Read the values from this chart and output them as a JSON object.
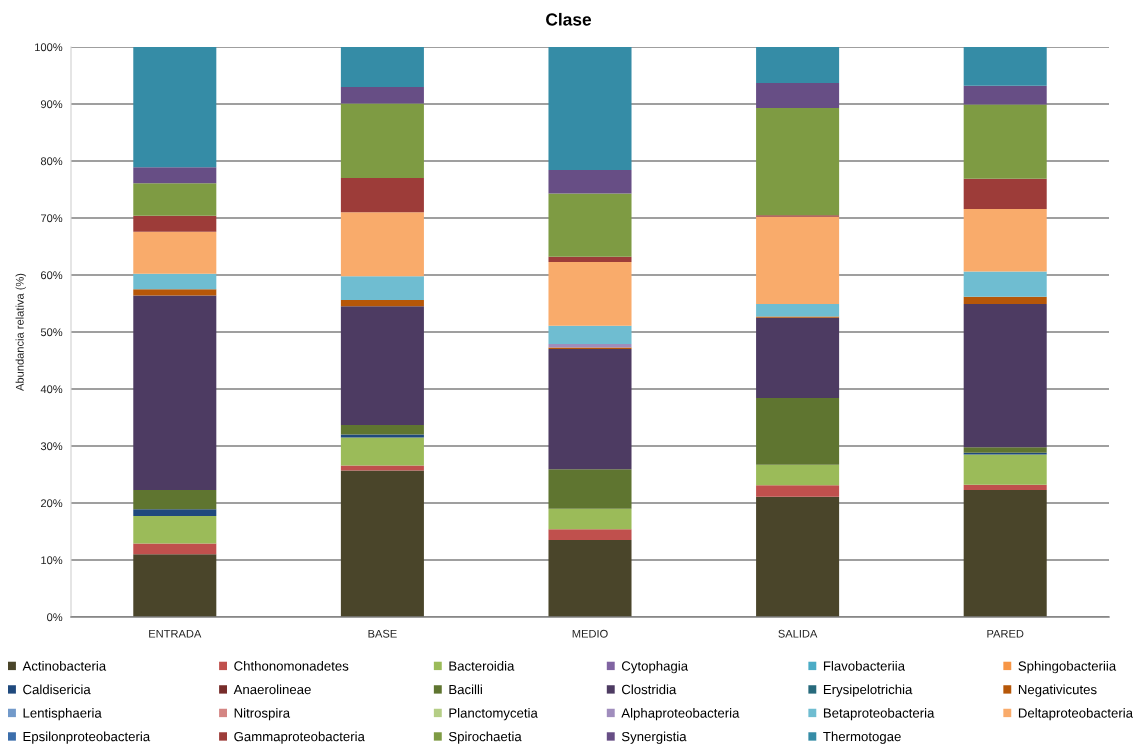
{
  "chart_data": {
    "type": "bar",
    "title": "Clase",
    "ylabel": "Abundancia relativa (%)",
    "categories": [
      "ENTRADA",
      "BASE",
      "MEDIO",
      "SALIDA",
      "PARED"
    ],
    "stacked": true,
    "ylim": [
      0,
      100
    ],
    "yticks": [
      {
        "value": 0,
        "label": "0%"
      },
      {
        "value": 10,
        "label": "10%"
      },
      {
        "value": 20,
        "label": "20%"
      },
      {
        "value": 30,
        "label": "30%"
      },
      {
        "value": 40,
        "label": "40%"
      },
      {
        "value": 50,
        "label": "50%"
      },
      {
        "value": 60,
        "label": "60%"
      },
      {
        "value": 70,
        "label": "70%"
      },
      {
        "value": 80,
        "label": "80%"
      },
      {
        "value": 90,
        "label": "90%"
      },
      {
        "value": 100,
        "label": "100%"
      }
    ],
    "grid": "y",
    "legend": "bottom",
    "series": [
      {
        "name": "Actinobacteria",
        "color": "#4a452a",
        "values": [
          11.0,
          25.7,
          13.5,
          21.1,
          22.3
        ]
      },
      {
        "name": "Chthonomonadetes",
        "color": "#c0504d",
        "values": [
          1.9,
          0.9,
          1.9,
          2.0,
          0.9
        ]
      },
      {
        "name": "Bacteroidia",
        "color": "#9bbb59",
        "values": [
          4.8,
          4.9,
          3.6,
          3.6,
          5.3
        ]
      },
      {
        "name": "Cytophagia",
        "color": "#8064a2",
        "values": [
          null,
          null,
          null,
          null,
          null
        ]
      },
      {
        "name": "Flavobacteriia",
        "color": "#4bacc6",
        "values": [
          null,
          null,
          null,
          null,
          null
        ]
      },
      {
        "name": "Sphingobacteriia",
        "color": "#f79646",
        "values": [
          null,
          null,
          null,
          null,
          null
        ]
      },
      {
        "name": "Caldisericia",
        "color": "#1f497d",
        "values": [
          1.2,
          0.5,
          null,
          null,
          0.3
        ]
      },
      {
        "name": "Anaerolineae",
        "color": "#772c2a",
        "values": [
          null,
          null,
          null,
          null,
          null
        ]
      },
      {
        "name": "Bacilli",
        "color": "#5f7530",
        "values": [
          3.4,
          1.7,
          6.9,
          11.7,
          1.0
        ]
      },
      {
        "name": "Clostridia",
        "color": "#4d3b62",
        "values": [
          34.1,
          20.8,
          21.1,
          14.1,
          25.1
        ]
      },
      {
        "name": "Erysipelotrichia",
        "color": "#276a7c",
        "values": [
          null,
          null,
          null,
          null,
          null
        ]
      },
      {
        "name": "Negativicutes",
        "color": "#b65708",
        "values": [
          1.1,
          1.1,
          0.3,
          0.2,
          1.3
        ]
      },
      {
        "name": "Lentisphaeria",
        "color": "#729aca",
        "values": [
          null,
          null,
          null,
          null,
          null
        ]
      },
      {
        "name": "Nitrospira",
        "color": "#d48583",
        "values": [
          null,
          null,
          null,
          null,
          null
        ]
      },
      {
        "name": "Planctomycetia",
        "color": "#b5ce86",
        "values": [
          null,
          null,
          null,
          null,
          null
        ]
      },
      {
        "name": "Alphaproteobacteria",
        "color": "#a08dbd",
        "values": [
          null,
          null,
          0.6,
          null,
          null
        ]
      },
      {
        "name": "Betaproteobacteria",
        "color": "#6fbdd1",
        "values": [
          2.7,
          4.2,
          3.2,
          2.2,
          4.4
        ]
      },
      {
        "name": "Deltaproteobacteria",
        "color": "#f9ab6b",
        "values": [
          7.4,
          11.2,
          11.2,
          15.3,
          11.0
        ]
      },
      {
        "name": "Epsilonproteobacteria",
        "color": "#3c6eab",
        "values": [
          null,
          null,
          null,
          null,
          null
        ]
      },
      {
        "name": "Gammaproteobacteria",
        "color": "#9d3c39",
        "values": [
          2.8,
          6.0,
          0.9,
          0.3,
          5.3
        ]
      },
      {
        "name": "Spirochaetia",
        "color": "#7e9b43",
        "values": [
          5.7,
          13.1,
          11.1,
          18.8,
          13.0
        ]
      },
      {
        "name": "Synergistia",
        "color": "#674e85",
        "values": [
          2.8,
          2.9,
          4.1,
          4.4,
          3.3
        ]
      },
      {
        "name": "Thermotogae",
        "color": "#358ca6",
        "values": [
          21.1,
          7.0,
          21.6,
          6.3,
          6.8
        ]
      }
    ]
  }
}
